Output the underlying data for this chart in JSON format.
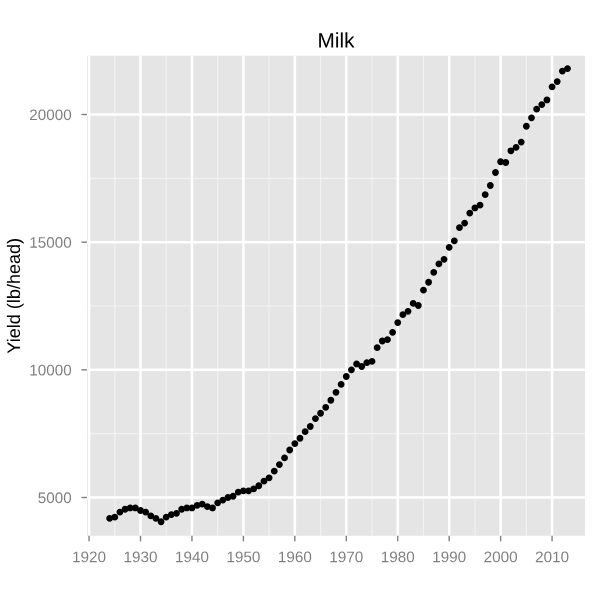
{
  "chart_data": {
    "type": "scatter",
    "title": "Milk",
    "ylabel": "Yield (lb/head)",
    "x": [
      1924,
      1925,
      1926,
      1927,
      1928,
      1929,
      1930,
      1931,
      1932,
      1933,
      1934,
      1935,
      1936,
      1937,
      1938,
      1939,
      1940,
      1941,
      1942,
      1943,
      1944,
      1945,
      1946,
      1947,
      1948,
      1949,
      1950,
      1951,
      1952,
      1953,
      1954,
      1955,
      1956,
      1957,
      1958,
      1959,
      1960,
      1961,
      1962,
      1963,
      1964,
      1965,
      1966,
      1967,
      1968,
      1969,
      1970,
      1971,
      1972,
      1973,
      1974,
      1975,
      1976,
      1977,
      1978,
      1979,
      1980,
      1981,
      1982,
      1983,
      1984,
      1985,
      1986,
      1987,
      1988,
      1989,
      1990,
      1991,
      1992,
      1993,
      1994,
      1995,
      1996,
      1997,
      1998,
      1999,
      2000,
      2001,
      2002,
      2003,
      2004,
      2005,
      2006,
      2007,
      2008,
      2009,
      2010,
      2011,
      2012,
      2013
    ],
    "values": [
      4180,
      4230,
      4430,
      4540,
      4590,
      4590,
      4490,
      4430,
      4280,
      4180,
      4050,
      4230,
      4330,
      4380,
      4540,
      4590,
      4590,
      4690,
      4740,
      4640,
      4590,
      4790,
      4900,
      5000,
      5050,
      5210,
      5260,
      5260,
      5340,
      5460,
      5640,
      5770,
      6030,
      6290,
      6550,
      6860,
      7110,
      7320,
      7580,
      7780,
      8090,
      8300,
      8530,
      8810,
      9120,
      9430,
      9740,
      10000,
      10230,
      10130,
      10280,
      10330,
      10870,
      11130,
      11180,
      11470,
      11850,
      12160,
      12290,
      12600,
      12520,
      13120,
      13430,
      13820,
      14150,
      14330,
      14800,
      15050,
      15570,
      15750,
      16140,
      16340,
      16450,
      16860,
      17220,
      17730,
      18150,
      18120,
      18580,
      18710,
      18920,
      19540,
      19870,
      20210,
      20390,
      20570,
      21080,
      21290,
      21700,
      21800
    ],
    "color": "#000000",
    "marker": "circle",
    "xlim": [
      1919.6,
      2016.4
    ],
    "xticks": [
      1920,
      1930,
      1940,
      1950,
      1960,
      1970,
      1980,
      1990,
      2000,
      2010
    ],
    "ylim": [
      3500,
      22300
    ],
    "yticks": [
      5000,
      10000,
      15000,
      20000
    ],
    "grid": true
  }
}
